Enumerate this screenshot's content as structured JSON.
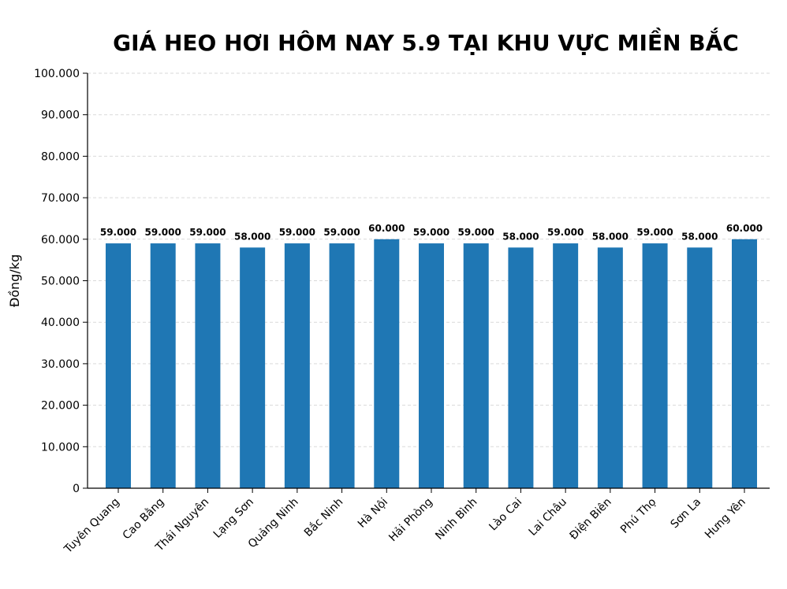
{
  "chart_data": {
    "type": "bar",
    "title": "GIÁ HEO HƠI HÔM NAY 5.9 TẠI KHU VỰC MIỀN BẮC",
    "xlabel": "",
    "ylabel": "Đồng/kg",
    "ylim": [
      0,
      100000
    ],
    "yticks": [
      "0",
      "10.000",
      "20.000",
      "30.000",
      "40.000",
      "50.000",
      "60.000",
      "70.000",
      "80.000",
      "90.000",
      "100.000"
    ],
    "grid": "horizontal dashed",
    "bar_color": "#1f77b4",
    "categories": [
      "Tuyên Quang",
      "Cao Bằng",
      "Thái Nguyên",
      "Lạng Sơn",
      "Quảng Ninh",
      "Bắc Ninh",
      "Hà Nội",
      "Hải Phòng",
      "Ninh Bình",
      "Lào Cai",
      "Lai Châu",
      "Điện Biên",
      "Phú Thọ",
      "Sơn La",
      "Hưng Yên"
    ],
    "values": [
      59000,
      59000,
      59000,
      58000,
      59000,
      59000,
      60000,
      59000,
      59000,
      58000,
      59000,
      58000,
      59000,
      58000,
      60000
    ],
    "data_labels": [
      "59.000",
      "59.000",
      "59.000",
      "58.000",
      "59.000",
      "59.000",
      "60.000",
      "59.000",
      "59.000",
      "58.000",
      "59.000",
      "58.000",
      "59.000",
      "58.000",
      "60.000"
    ]
  }
}
